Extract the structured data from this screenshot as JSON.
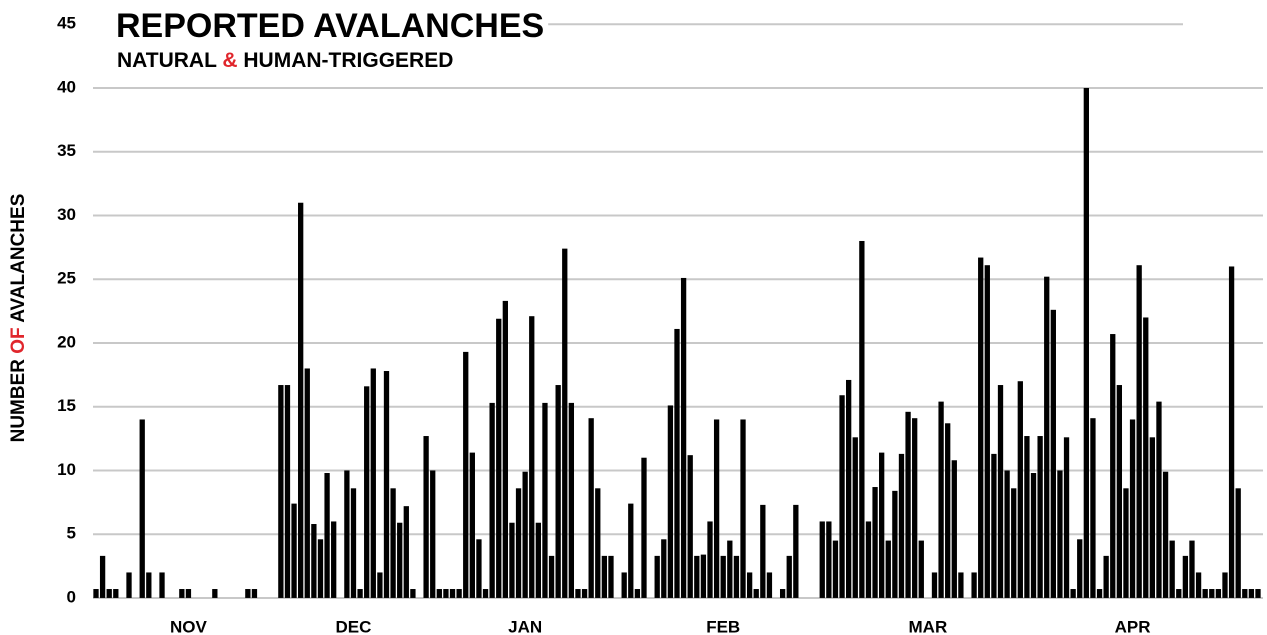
{
  "chart_data": {
    "type": "bar",
    "title": "REPORTED AVALANCHES",
    "subtitle": "NATURAL & HUMAN-TRIGGERED",
    "y_label": "NUMBER OF AVALANCHES",
    "color": "#000000",
    "highlight_color": "#e0262c",
    "grid": true,
    "ylim": [
      -0.6,
      45
    ],
    "yticks": [
      0,
      5,
      10,
      15,
      20,
      25,
      30,
      35,
      40,
      45
    ],
    "categories": [
      null,
      null,
      null,
      null,
      null,
      null,
      null,
      null,
      null,
      null,
      null,
      null,
      null,
      null,
      "NOV",
      null,
      null,
      null,
      null,
      null,
      null,
      null,
      null,
      null,
      null,
      null,
      null,
      null,
      null,
      null,
      null,
      null,
      null,
      null,
      null,
      null,
      null,
      null,
      null,
      "DEC",
      null,
      null,
      null,
      null,
      null,
      null,
      null,
      null,
      null,
      null,
      null,
      null,
      null,
      null,
      null,
      null,
      null,
      null,
      null,
      null,
      null,
      null,
      null,
      null,
      null,
      "JAN",
      null,
      null,
      null,
      null,
      null,
      null,
      null,
      null,
      null,
      null,
      null,
      null,
      null,
      null,
      null,
      null,
      null,
      null,
      null,
      null,
      null,
      null,
      null,
      null,
      null,
      null,
      null,
      null,
      null,
      "FEB",
      null,
      null,
      null,
      null,
      null,
      null,
      null,
      null,
      null,
      null,
      null,
      null,
      null,
      null,
      null,
      null,
      null,
      null,
      null,
      null,
      null,
      null,
      null,
      null,
      null,
      null,
      null,
      null,
      null,
      null,
      "MAR",
      null,
      null,
      null,
      null,
      null,
      null,
      null,
      null,
      null,
      null,
      null,
      null,
      null,
      null,
      null,
      null,
      null,
      null,
      null,
      null,
      null,
      null,
      null,
      null,
      null,
      null,
      null,
      null,
      null,
      null,
      "APR",
      null,
      null,
      null,
      null,
      null,
      null,
      null,
      null,
      null,
      null,
      null,
      null,
      null,
      null,
      null,
      null,
      null,
      null,
      null
    ],
    "values": [
      0.7,
      3.3,
      0.7,
      0.7,
      0,
      2,
      0,
      14,
      2,
      0,
      2,
      0,
      0,
      0.7,
      0.7,
      0,
      0,
      0,
      0.7,
      0,
      0,
      0,
      0,
      0.7,
      0.7,
      0,
      0,
      0,
      16.7,
      16.7,
      7.4,
      31,
      18,
      5.8,
      4.6,
      9.8,
      6,
      0,
      10,
      8.6,
      0.7,
      16.6,
      18,
      2,
      17.8,
      8.6,
      5.9,
      7.2,
      0.7,
      0,
      12.7,
      10,
      0.7,
      0.7,
      0.7,
      0.7,
      19.3,
      11.4,
      4.6,
      0.7,
      15.3,
      21.9,
      23.3,
      5.9,
      8.6,
      9.9,
      22.1,
      5.9,
      15.3,
      3.3,
      16.7,
      27.4,
      15.3,
      0.7,
      0.7,
      14.1,
      8.6,
      3.3,
      3.3,
      0,
      2,
      7.4,
      0.7,
      11,
      0,
      3.3,
      4.6,
      15.1,
      21.1,
      25.1,
      11.2,
      3.3,
      3.4,
      6,
      14,
      3.3,
      4.5,
      3.3,
      14,
      2,
      0.7,
      7.3,
      2,
      0,
      0.7,
      3.3,
      7.3,
      0,
      0,
      0,
      6,
      6,
      4.5,
      15.9,
      17.1,
      12.6,
      28,
      6,
      8.7,
      11.4,
      4.5,
      8.4,
      11.3,
      14.6,
      14.1,
      4.5,
      0,
      2,
      15.4,
      13.7,
      10.8,
      2,
      0,
      2,
      26.7,
      26.1,
      11.3,
      16.7,
      10,
      8.6,
      17,
      12.7,
      9.8,
      12.7,
      25.2,
      22.6,
      10,
      12.6,
      0.7,
      4.6,
      40,
      14.1,
      0.7,
      3.3,
      20.7,
      16.7,
      8.6,
      14,
      26.1,
      22,
      12.6,
      15.4,
      9.9,
      4.5,
      0.7,
      3.3,
      4.5,
      2,
      0.7,
      0.7,
      0.7,
      2,
      26,
      8.6,
      0.7,
      0.7,
      0.7
    ]
  }
}
